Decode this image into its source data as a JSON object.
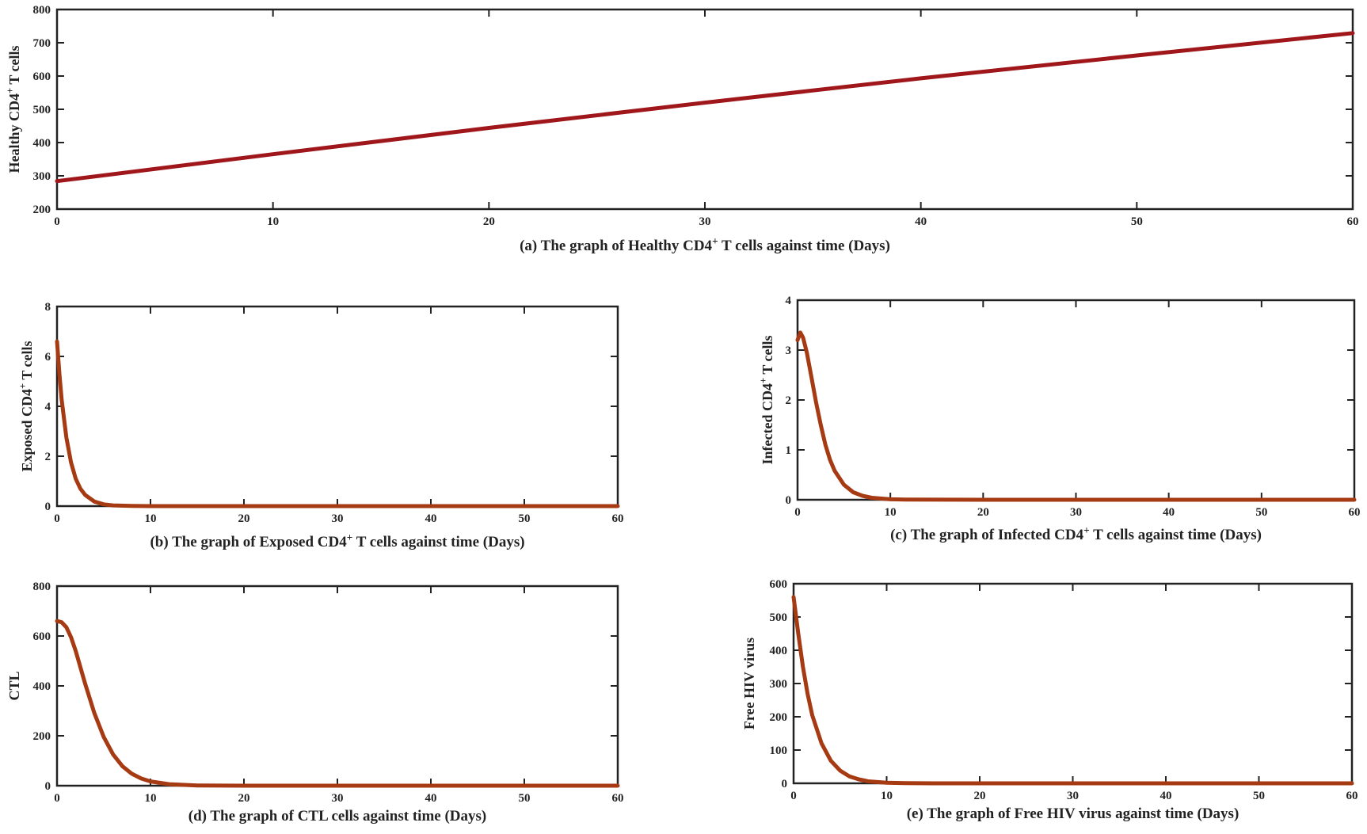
{
  "chart_data": [
    {
      "id": "a",
      "type": "line",
      "caption": "(a) The graph of Healthy CD4<sup>+</sup> T cells against time (Days)",
      "ylabel": "Healthy CD4<sup>+</sup> T cells",
      "xlabel": "",
      "xlim": [
        0,
        60
      ],
      "ylim": [
        200,
        800
      ],
      "xticks": [
        0,
        10,
        20,
        30,
        40,
        50,
        60
      ],
      "yticks": [
        200,
        300,
        400,
        500,
        600,
        700,
        800
      ],
      "grid": false,
      "color": "#a0171b",
      "series": [
        {
          "x": [
            0,
            10,
            20,
            30,
            40,
            50,
            60
          ],
          "y": [
            284,
            365,
            444,
            520,
            593,
            662,
            729
          ]
        }
      ]
    },
    {
      "id": "b",
      "type": "line",
      "caption": "(b) The graph of Exposed CD4<sup>+</sup> T cells against time (Days)",
      "ylabel": "Exposed CD4<sup>+</sup> T cells",
      "xlabel": "",
      "xlim": [
        0,
        60
      ],
      "ylim": [
        0,
        8
      ],
      "xticks": [
        0,
        10,
        20,
        30,
        40,
        50,
        60
      ],
      "yticks": [
        0,
        2,
        4,
        6,
        8
      ],
      "grid": false,
      "color": "#a63a12",
      "series": [
        {
          "x": [
            0,
            0.25,
            0.5,
            1,
            1.5,
            2,
            2.5,
            3,
            4,
            5,
            6,
            8,
            10,
            20,
            30,
            40,
            50,
            60
          ],
          "y": [
            6.6,
            5.3,
            4.25,
            2.75,
            1.75,
            1.1,
            0.7,
            0.45,
            0.18,
            0.07,
            0.03,
            0.005,
            0,
            0,
            0,
            0,
            0,
            0
          ]
        }
      ]
    },
    {
      "id": "c",
      "type": "line",
      "caption": "(c) The graph of Infected CD4<sup>+</sup> T cells against time (Days)",
      "ylabel": "Infected CD4<sup>+</sup> T cells",
      "xlabel": "",
      "xlim": [
        0,
        60
      ],
      "ylim": [
        0,
        4
      ],
      "xticks": [
        0,
        10,
        20,
        30,
        40,
        50,
        60
      ],
      "yticks": [
        0,
        1,
        2,
        3,
        4
      ],
      "grid": false,
      "color": "#a63a12",
      "series": [
        {
          "x": [
            0,
            0.3,
            0.6,
            1,
            1.5,
            2,
            2.5,
            3,
            3.5,
            4,
            5,
            6,
            7,
            8,
            10,
            12,
            20,
            30,
            40,
            50,
            60
          ],
          "y": [
            3.2,
            3.35,
            3.25,
            2.95,
            2.45,
            1.95,
            1.5,
            1.1,
            0.8,
            0.58,
            0.3,
            0.15,
            0.08,
            0.04,
            0.01,
            0.003,
            0,
            0,
            0,
            0,
            0
          ]
        }
      ]
    },
    {
      "id": "d",
      "type": "line",
      "caption": "(d) The graph of CTL  cells against time (Days)",
      "ylabel": "CTL",
      "xlabel": "",
      "xlim": [
        0,
        60
      ],
      "ylim": [
        0,
        800
      ],
      "xticks": [
        0,
        10,
        20,
        30,
        40,
        50,
        60
      ],
      "yticks": [
        0,
        200,
        400,
        600,
        800
      ],
      "grid": false,
      "color": "#a63a12",
      "series": [
        {
          "x": [
            0,
            0.5,
            1,
            1.5,
            2,
            3,
            4,
            5,
            6,
            7,
            8,
            9,
            10,
            12,
            15,
            20,
            30,
            40,
            50,
            60
          ],
          "y": [
            660,
            655,
            635,
            595,
            540,
            410,
            290,
            195,
            125,
            78,
            48,
            29,
            17,
            6,
            1,
            0,
            0,
            0,
            0,
            0
          ]
        }
      ]
    },
    {
      "id": "e",
      "type": "line",
      "caption": "(e) The graph of Free HIV virus against time (Days)",
      "ylabel": "Free HIV virus",
      "xlabel": "",
      "xlim": [
        0,
        60
      ],
      "ylim": [
        0,
        600
      ],
      "xticks": [
        0,
        10,
        20,
        30,
        40,
        50,
        60
      ],
      "yticks": [
        0,
        100,
        200,
        300,
        400,
        500,
        600
      ],
      "grid": false,
      "color": "#a63a12",
      "series": [
        {
          "x": [
            0,
            0.5,
            1,
            1.5,
            2,
            3,
            4,
            5,
            6,
            7,
            8,
            10,
            12,
            15,
            20,
            30,
            40,
            50,
            60
          ],
          "y": [
            560,
            450,
            350,
            270,
            205,
            120,
            68,
            38,
            21,
            12,
            6,
            2,
            0.5,
            0,
            0,
            0,
            0,
            0,
            0
          ]
        }
      ]
    }
  ]
}
